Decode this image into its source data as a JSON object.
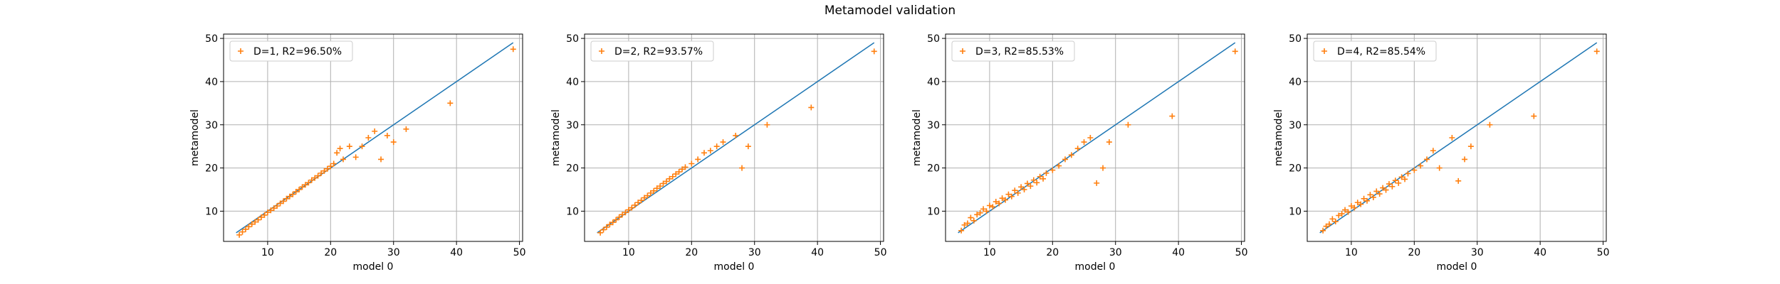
{
  "figure": {
    "suptitle": "Metamodel validation"
  },
  "colors": {
    "points": "#ff7f0e",
    "line": "#1f77b4",
    "grid": "#b0b0b0"
  },
  "chart_data": [
    {
      "type": "scatter",
      "xlabel": "model 0",
      "ylabel": "metamodel",
      "xlim": [
        3.0,
        50.5
      ],
      "ylim": [
        3.0,
        51.0
      ],
      "xticks": [
        10,
        20,
        30,
        40,
        50
      ],
      "yticks": [
        10,
        20,
        30,
        40,
        50
      ],
      "grid": true,
      "legend": "upper-left",
      "series": [
        {
          "name": "D=1, R2=96.50%",
          "marker": "+",
          "x": [
            5.5,
            6.0,
            6.5,
            7.0,
            7.5,
            8.0,
            8.5,
            9.0,
            9.5,
            10.0,
            10.5,
            11.0,
            11.5,
            12.0,
            12.5,
            13.0,
            13.5,
            14.0,
            14.5,
            15.0,
            15.5,
            16.0,
            16.5,
            17.0,
            17.5,
            18.0,
            18.5,
            19.0,
            19.5,
            20.0,
            20.5,
            21.0,
            21.5,
            22.0,
            23.0,
            24.0,
            25.0,
            26.0,
            27.0,
            28.0,
            29.0,
            30.0,
            32.0,
            39.0,
            49.0
          ],
          "y": [
            4.5,
            5.2,
            5.8,
            6.4,
            7.0,
            7.5,
            8.0,
            8.6,
            9.1,
            9.7,
            10.2,
            10.7,
            11.2,
            11.8,
            12.3,
            12.9,
            13.4,
            13.9,
            14.5,
            15.0,
            15.6,
            16.1,
            16.6,
            17.2,
            17.7,
            18.2,
            18.8,
            19.3,
            19.8,
            20.4,
            21.0,
            23.5,
            24.5,
            22.0,
            25.0,
            22.5,
            25.0,
            27.0,
            28.5,
            22.0,
            27.5,
            26.0,
            29.0,
            35.0,
            47.5
          ]
        }
      ],
      "reference_line": {
        "x": [
          5.0,
          49.0
        ],
        "y": [
          5.0,
          49.0
        ]
      }
    },
    {
      "type": "scatter",
      "xlabel": "model 0",
      "ylabel": "metamodel",
      "xlim": [
        3.0,
        50.5
      ],
      "ylim": [
        3.0,
        51.0
      ],
      "xticks": [
        10,
        20,
        30,
        40,
        50
      ],
      "yticks": [
        10,
        20,
        30,
        40,
        50
      ],
      "grid": true,
      "legend": "upper-left",
      "series": [
        {
          "name": "D=2, R2=93.57%",
          "marker": "+",
          "x": [
            5.5,
            6.0,
            6.5,
            7.0,
            7.5,
            8.0,
            8.5,
            9.0,
            9.5,
            10.0,
            10.5,
            11.0,
            11.5,
            12.0,
            12.5,
            13.0,
            13.5,
            14.0,
            14.5,
            15.0,
            15.5,
            16.0,
            16.5,
            17.0,
            17.5,
            18.0,
            18.5,
            19.0,
            20.0,
            21.0,
            22.0,
            23.0,
            24.0,
            25.0,
            27.0,
            28.0,
            29.0,
            32.0,
            39.0,
            49.0
          ],
          "y": [
            5.0,
            5.7,
            6.3,
            6.9,
            7.4,
            8.0,
            8.6,
            9.2,
            9.7,
            10.3,
            10.8,
            11.4,
            12.0,
            12.5,
            13.1,
            13.6,
            14.2,
            14.7,
            15.3,
            15.8,
            16.4,
            16.9,
            17.5,
            18.0,
            18.6,
            19.1,
            19.7,
            20.2,
            21.0,
            22.0,
            23.5,
            24.0,
            25.0,
            26.0,
            27.5,
            20.0,
            25.0,
            30.0,
            34.0,
            47.0
          ]
        }
      ],
      "reference_line": {
        "x": [
          5.0,
          49.0
        ],
        "y": [
          5.0,
          49.0
        ]
      }
    },
    {
      "type": "scatter",
      "xlabel": "model 0",
      "ylabel": "metamodel",
      "xlim": [
        3.0,
        50.5
      ],
      "ylim": [
        3.0,
        51.0
      ],
      "xticks": [
        10,
        20,
        30,
        40,
        50
      ],
      "yticks": [
        10,
        20,
        30,
        40,
        50
      ],
      "grid": true,
      "legend": "upper-left",
      "series": [
        {
          "name": "D=3, R2=85.53%",
          "marker": "+",
          "x": [
            5.5,
            6.0,
            6.5,
            7.0,
            7.5,
            8.0,
            8.5,
            9.0,
            9.5,
            10.0,
            10.5,
            11.0,
            11.5,
            12.0,
            12.5,
            13.0,
            13.5,
            14.0,
            14.5,
            15.0,
            15.5,
            16.0,
            16.5,
            17.0,
            17.5,
            18.0,
            18.5,
            19.0,
            20.0,
            21.0,
            22.0,
            23.0,
            24.0,
            25.0,
            26.0,
            27.0,
            28.0,
            29.0,
            32.0,
            39.0,
            49.0
          ],
          "y": [
            5.5,
            6.8,
            7.2,
            8.5,
            7.8,
            9.2,
            9.6,
            10.5,
            10.0,
            11.3,
            11.0,
            12.2,
            11.8,
            13.0,
            12.6,
            13.9,
            13.4,
            14.8,
            14.2,
            15.6,
            15.0,
            16.4,
            15.8,
            17.2,
            16.6,
            18.0,
            17.5,
            18.8,
            19.5,
            20.5,
            22.0,
            23.0,
            24.5,
            26.0,
            27.0,
            16.5,
            20.0,
            26.0,
            30.0,
            32.0,
            47.0
          ]
        }
      ],
      "reference_line": {
        "x": [
          5.0,
          49.0
        ],
        "y": [
          5.0,
          49.0
        ]
      }
    },
    {
      "type": "scatter",
      "xlabel": "model 0",
      "ylabel": "metamodel",
      "xlim": [
        3.0,
        50.5
      ],
      "ylim": [
        3.0,
        51.0
      ],
      "xticks": [
        10,
        20,
        30,
        40,
        50
      ],
      "yticks": [
        10,
        20,
        30,
        40,
        50
      ],
      "grid": true,
      "legend": "upper-left",
      "series": [
        {
          "name": "D=4, R2=85.54%",
          "marker": "+",
          "x": [
            5.5,
            6.0,
            6.5,
            7.0,
            7.5,
            8.0,
            8.5,
            9.0,
            9.5,
            10.0,
            10.5,
            11.0,
            11.5,
            12.0,
            12.5,
            13.0,
            13.5,
            14.0,
            14.5,
            15.0,
            15.5,
            16.0,
            16.5,
            17.0,
            17.5,
            18.0,
            18.5,
            19.0,
            20.0,
            21.0,
            22.0,
            23.0,
            24.0,
            26.0,
            27.0,
            28.0,
            29.0,
            32.0,
            39.0,
            49.0
          ],
          "y": [
            5.5,
            6.5,
            7.0,
            8.2,
            7.6,
            9.0,
            9.4,
            10.3,
            9.8,
            11.2,
            10.8,
            12.0,
            11.6,
            12.9,
            12.4,
            13.8,
            13.2,
            14.6,
            14.0,
            15.4,
            14.9,
            16.3,
            15.7,
            17.1,
            16.5,
            17.9,
            17.4,
            18.7,
            19.5,
            20.5,
            22.0,
            24.0,
            20.0,
            27.0,
            17.0,
            22.0,
            25.0,
            30.0,
            32.0,
            47.0
          ]
        }
      ],
      "reference_line": {
        "x": [
          5.0,
          49.0
        ],
        "y": [
          5.0,
          49.0
        ]
      }
    }
  ]
}
